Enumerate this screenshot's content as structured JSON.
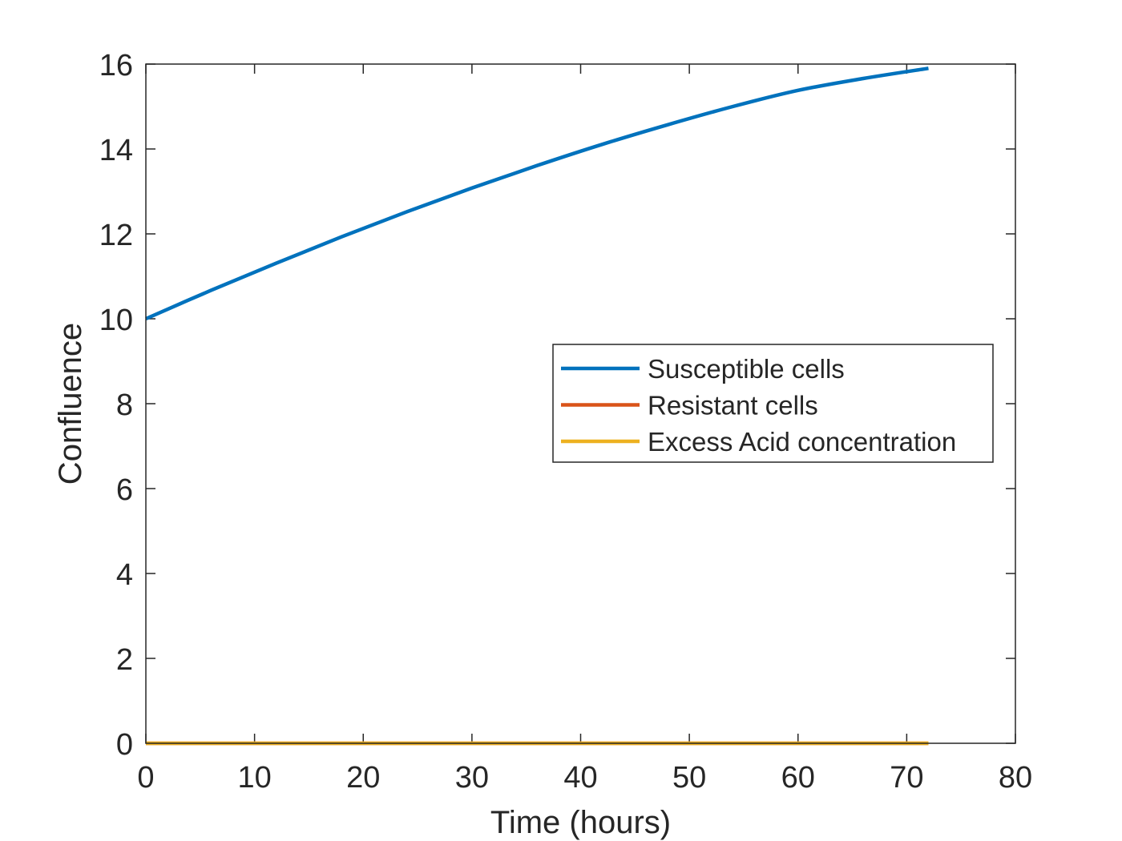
{
  "chart_data": {
    "type": "line",
    "title": "",
    "xlabel": "Time (hours)",
    "ylabel": "Confluence",
    "xlim": [
      0,
      80
    ],
    "ylim": [
      0,
      16
    ],
    "xticks": [
      0,
      10,
      20,
      30,
      40,
      50,
      60,
      70,
      80
    ],
    "yticks": [
      0,
      2,
      4,
      6,
      8,
      10,
      12,
      14,
      16
    ],
    "grid": false,
    "legend_position": "middle-right",
    "x": [
      0,
      6,
      12,
      18,
      24,
      30,
      36,
      42,
      48,
      54,
      60,
      66,
      72
    ],
    "series": [
      {
        "name": "Susceptible cells",
        "color": "#0072BD",
        "values": [
          10.0,
          10.67,
          11.31,
          11.93,
          12.52,
          13.08,
          13.61,
          14.11,
          14.57,
          15.0,
          15.38,
          15.66,
          15.9
        ]
      },
      {
        "name": "Resistant cells",
        "color": "#D95319",
        "values": [
          0,
          0,
          0,
          0,
          0,
          0,
          0,
          0,
          0,
          0,
          0,
          0,
          0
        ]
      },
      {
        "name": "Excess Acid concentration",
        "color": "#EDB120",
        "values": [
          0,
          0,
          0,
          0,
          0,
          0,
          0,
          0,
          0,
          0,
          0,
          0,
          0
        ]
      }
    ]
  }
}
